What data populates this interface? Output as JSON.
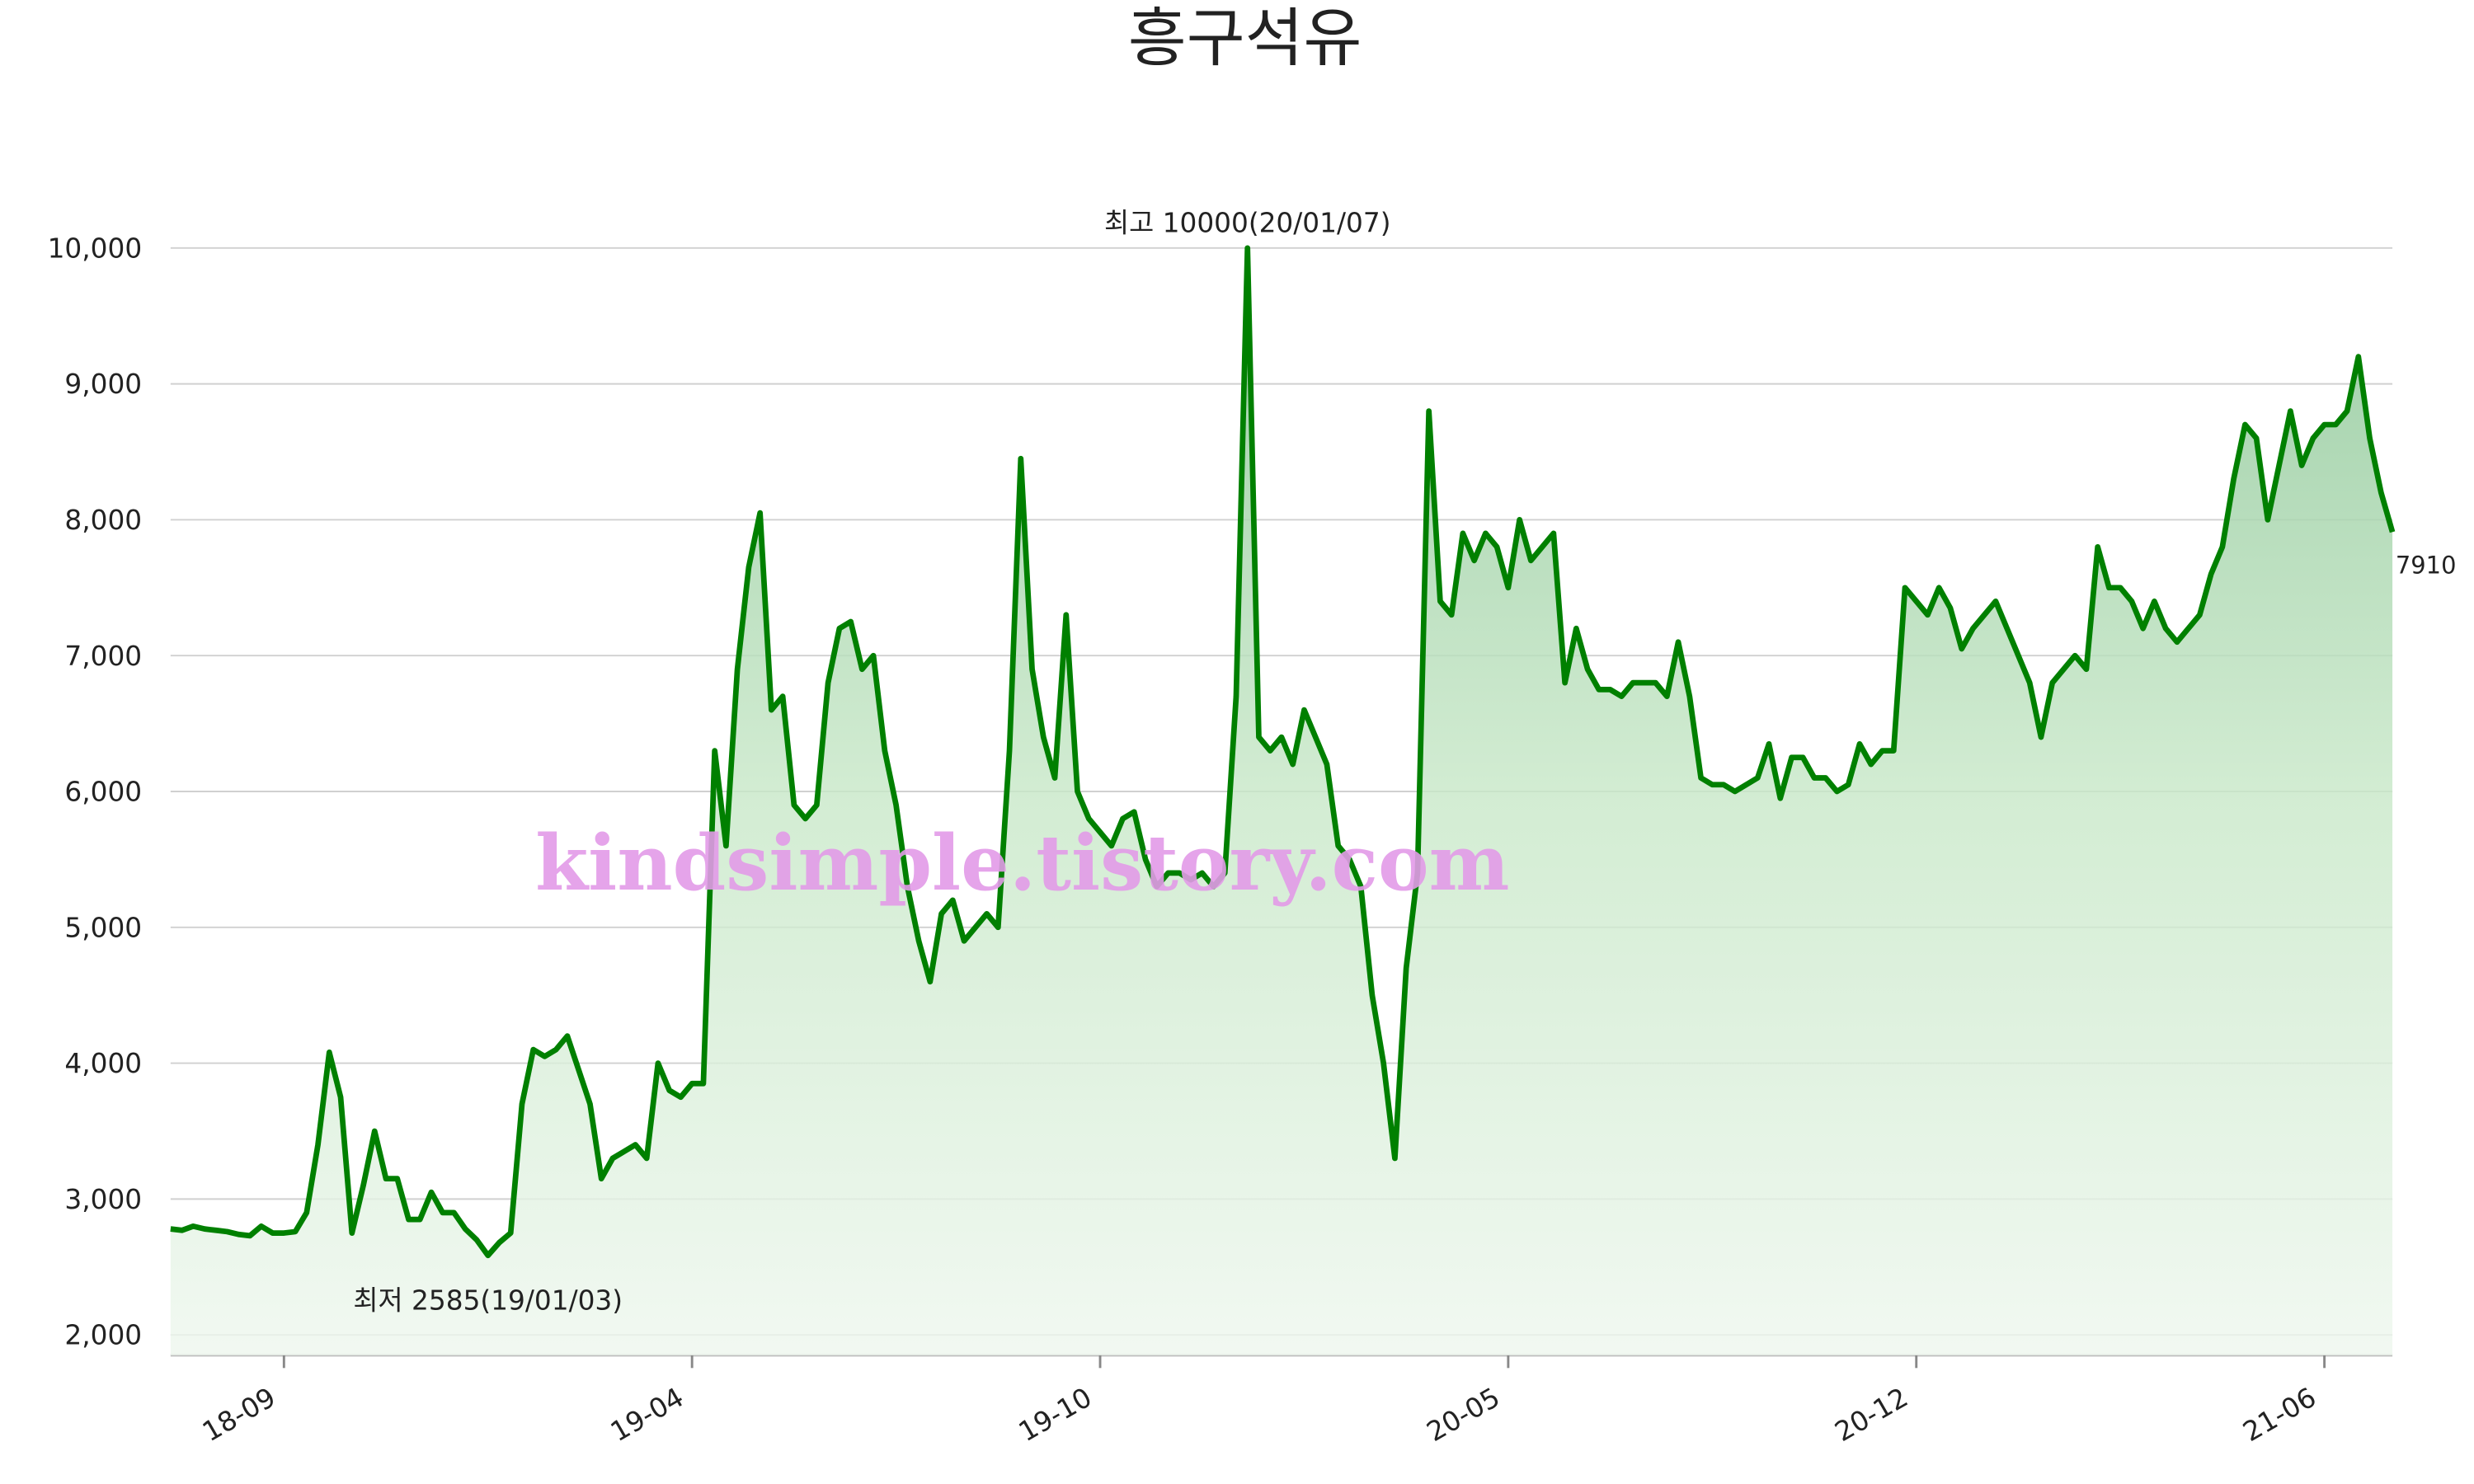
{
  "chart_data": {
    "type": "line",
    "title": "흥구석유",
    "watermark": "kindsimple.tistory.com",
    "annotations": {
      "max": "최고 10000(20/01/07)",
      "min": "최저 2585(19/01/03)"
    },
    "categories": [
      null,
      null,
      null,
      null,
      null,
      null,
      null,
      null,
      null,
      null,
      "18-09",
      null,
      null,
      null,
      null,
      null,
      null,
      null,
      null,
      null,
      null,
      null,
      null,
      null,
      null,
      null,
      null,
      null,
      null,
      null,
      null,
      null,
      null,
      null,
      null,
      null,
      null,
      null,
      null,
      null,
      null,
      null,
      null,
      null,
      null,
      null,
      "19-04",
      null,
      null,
      null,
      null,
      null,
      null,
      null,
      null,
      null,
      null,
      null,
      null,
      null,
      null,
      null,
      null,
      null,
      null,
      null,
      null,
      null,
      null,
      null,
      null,
      null,
      null,
      null,
      null,
      null,
      null,
      null,
      null,
      null,
      null,
      null,
      "19-10",
      null,
      null,
      null,
      null,
      null,
      null,
      null,
      null,
      null,
      null,
      null,
      null,
      null,
      null,
      null,
      null,
      null,
      null,
      null,
      null,
      null,
      null,
      null,
      null,
      null,
      null,
      null,
      null,
      null,
      null,
      null,
      null,
      null,
      null,
      null,
      "20-05",
      null,
      null,
      null,
      null,
      null,
      null,
      null,
      null,
      null,
      null,
      null,
      null,
      null,
      null,
      null,
      null,
      null,
      null,
      null,
      null,
      null,
      null,
      null,
      null,
      null,
      null,
      null,
      null,
      null,
      null,
      null,
      null,
      null,
      null,
      null,
      "20-12",
      null,
      null,
      null,
      null,
      null,
      null,
      null,
      null,
      null,
      null,
      null,
      null,
      null,
      null,
      null,
      null,
      null,
      null,
      null,
      null,
      null,
      null,
      null,
      null,
      null,
      null,
      null,
      null,
      null,
      null,
      null,
      null,
      null,
      null,
      null,
      "21-06",
      null,
      null,
      null,
      null,
      null,
      null
    ],
    "series": [
      {
        "name": "흥구석유",
        "color": "#008000",
        "values": [
          2780,
          2770,
          2800,
          2780,
          2770,
          2760,
          2740,
          2730,
          2800,
          2750,
          2750,
          2760,
          2900,
          3400,
          4080,
          3750,
          2750,
          3100,
          3500,
          3150,
          3150,
          2850,
          2850,
          3050,
          2900,
          2900,
          2780,
          2700,
          2585,
          2680,
          2750,
          3700,
          4100,
          4050,
          4100,
          4200,
          3950,
          3700,
          3150,
          3300,
          3350,
          3400,
          3300,
          4000,
          3800,
          3750,
          3850,
          3850,
          6300,
          5600,
          6900,
          7650,
          8050,
          6600,
          6700,
          5900,
          5800,
          5900,
          6800,
          7200,
          7250,
          6900,
          7000,
          6300,
          5900,
          5300,
          4900,
          4600,
          5100,
          5200,
          4900,
          5000,
          5100,
          5000,
          6300,
          8450,
          6900,
          6400,
          6100,
          7300,
          6000,
          5800,
          5700,
          5600,
          5800,
          5850,
          5500,
          5300,
          5400,
          5400,
          5350,
          5400,
          5300,
          5400,
          6700,
          10000,
          6400,
          6300,
          6400,
          6200,
          6600,
          6400,
          6200,
          5600,
          5500,
          5300,
          4500,
          4000,
          3300,
          4700,
          5400,
          8800,
          7400,
          7300,
          7900,
          7700,
          7900,
          7800,
          7500,
          8000,
          7700,
          7800,
          7900,
          6800,
          7200,
          6900,
          6750,
          6750,
          6700,
          6800,
          6800,
          6800,
          6700,
          7100,
          6700,
          6100,
          6050,
          6050,
          6000,
          6050,
          6100,
          6350,
          5950,
          6250,
          6250,
          6100,
          6100,
          6000,
          6050,
          6350,
          6200,
          6300,
          6300,
          7500,
          7400,
          7300,
          7500,
          7350,
          7050,
          7200,
          7300,
          7400,
          7200,
          7000,
          6800,
          6400,
          6800,
          6900,
          7000,
          6900,
          7800,
          7500,
          7500,
          7400,
          7200,
          7400,
          7200,
          7100,
          7200,
          7300,
          7600,
          7800,
          8300,
          8700,
          8600,
          8000,
          8400,
          8800,
          8400,
          8600,
          8700,
          8700,
          8800,
          9200,
          8600,
          8200,
          7910
        ]
      }
    ],
    "ylim": [
      1850,
      10200
    ],
    "yticks": [
      {
        "value": 2000,
        "label": "2,000"
      },
      {
        "value": 3000,
        "label": "3,000"
      },
      {
        "value": 4000,
        "label": "4,000"
      },
      {
        "value": 5000,
        "label": "5,000"
      },
      {
        "value": 6000,
        "label": "6,000"
      },
      {
        "value": 7000,
        "label": "7,000"
      },
      {
        "value": 8000,
        "label": "8,000"
      },
      {
        "value": 9000,
        "label": "9,000"
      },
      {
        "value": 10000,
        "label": "10,000"
      }
    ],
    "grid": true
  }
}
